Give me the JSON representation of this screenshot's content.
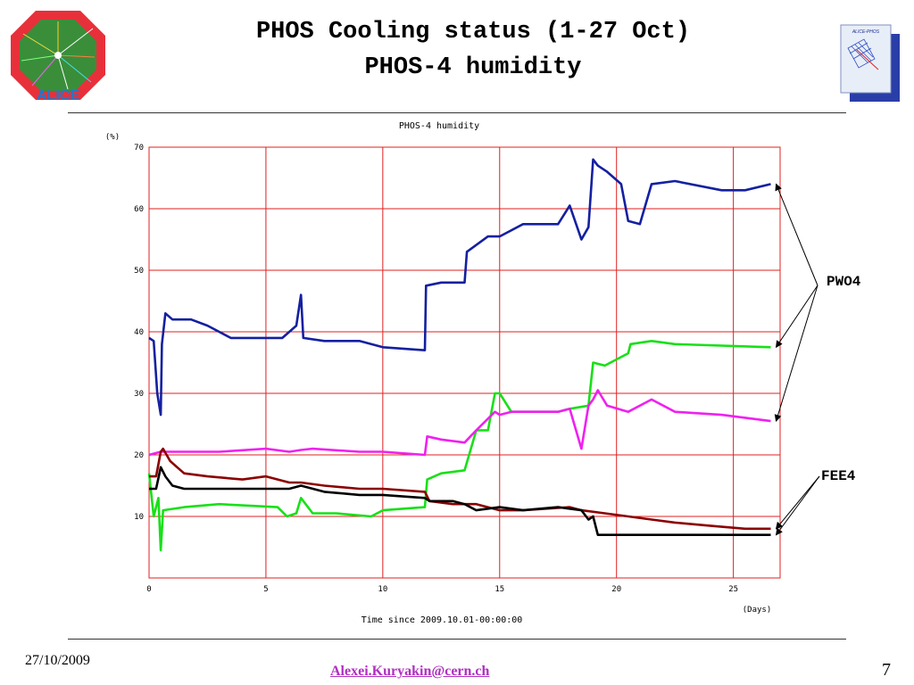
{
  "slide": {
    "title_line1": "PHOS Cooling status (1-27 Oct)",
    "title_line2": "PHOS-4 humidity",
    "date": "27/10/2009",
    "email": "Alexei.Kuryakin@cern.ch",
    "page_number": "7",
    "logo_left_text": "ALICE",
    "logo_right_text": "ALICE-PHOS"
  },
  "annotations": {
    "pwo4": "PWO4",
    "fee4": "FEE4"
  },
  "colors": {
    "grid": "#e02020",
    "blue": "#1420a0",
    "green": "#18e018",
    "magenta": "#f020f0",
    "darkred": "#8b0000",
    "black": "#000000"
  },
  "chart_data": {
    "type": "line",
    "title": "PHOS-4 humidity",
    "xlabel": "Time since 2009.10.01-00:00:00",
    "xunit": "(Days)",
    "ylabel": "(%)",
    "xlim": [
      0,
      27
    ],
    "ylim": [
      0,
      70
    ],
    "xticks": [
      0,
      5,
      10,
      15,
      20,
      25
    ],
    "yticks": [
      10,
      20,
      30,
      40,
      50,
      60,
      70
    ],
    "grid": true,
    "series": [
      {
        "color_key": "blue",
        "x": [
          0,
          0.2,
          0.35,
          0.5,
          0.55,
          0.7,
          1.0,
          1.8,
          2.5,
          3.5,
          4.5,
          5.7,
          6.3,
          6.5,
          6.6,
          7.5,
          9.0,
          10.0,
          11.8,
          11.85,
          12.5,
          13.5,
          13.6,
          14.5,
          15.0,
          16.0,
          17.5,
          18.0,
          18.5,
          18.8,
          19.0,
          19.2,
          19.6,
          20.2,
          20.5,
          21.0,
          21.5,
          22.5,
          24.5,
          25.5,
          26.6
        ],
        "y": [
          39,
          38.5,
          30,
          26.5,
          38,
          43,
          42,
          42,
          41,
          39,
          39,
          39,
          41,
          46,
          39,
          38.5,
          38.5,
          37.5,
          37,
          47.5,
          48,
          48,
          53,
          55.5,
          55.5,
          57.5,
          57.5,
          60.5,
          55,
          57,
          68,
          67,
          66,
          64,
          58,
          57.5,
          64,
          64.5,
          63,
          63,
          64
        ]
      },
      {
        "color_key": "green",
        "x": [
          0,
          0.2,
          0.4,
          0.5,
          0.6,
          1.5,
          3.0,
          5.5,
          5.9,
          6.3,
          6.5,
          7.0,
          8.0,
          9.5,
          10.0,
          11.8,
          11.9,
          12.5,
          13.5,
          14.0,
          14.5,
          14.8,
          15.0,
          15.5,
          17.5,
          18.0,
          18.8,
          19.0,
          19.5,
          20.5,
          20.6,
          21.5,
          22.5,
          26.6
        ],
        "y": [
          17,
          10,
          13,
          4.5,
          11,
          11.5,
          12,
          11.5,
          10,
          10.5,
          13,
          10.5,
          10.5,
          10,
          11,
          11.5,
          16,
          17,
          17.5,
          24,
          24,
          30,
          30,
          27,
          27,
          27.5,
          28,
          35,
          34.5,
          36.5,
          38,
          38.5,
          38,
          37.5
        ]
      },
      {
        "color_key": "magenta",
        "x": [
          0,
          0.5,
          1.0,
          3.0,
          5.0,
          6.0,
          6.5,
          7.0,
          9.0,
          10.0,
          11.8,
          11.9,
          12.5,
          13.5,
          14.0,
          14.8,
          15.0,
          15.5,
          17.5,
          18.0,
          18.5,
          18.8,
          19.0,
          19.2,
          19.6,
          20.5,
          21.5,
          22.5,
          24.5,
          26.6
        ],
        "y": [
          20,
          20.5,
          20.5,
          20.5,
          21,
          20.5,
          20.8,
          21,
          20.5,
          20.5,
          20,
          23,
          22.5,
          22,
          24,
          27,
          26.5,
          27,
          27,
          27.5,
          21,
          28,
          29,
          30.5,
          28,
          27,
          29,
          27,
          26.5,
          25.5
        ]
      },
      {
        "color_key": "darkred",
        "x": [
          0,
          0.3,
          0.5,
          0.6,
          0.9,
          1.2,
          1.5,
          2.5,
          4.0,
          5.0,
          6.0,
          6.5,
          7.5,
          9.0,
          10.0,
          11.8,
          12.0,
          13.0,
          14.0,
          15.0,
          16.0,
          18.0,
          18.5,
          19.5,
          20.5,
          21.5,
          22.5,
          24.0,
          25.5,
          26.6
        ],
        "y": [
          16.5,
          16.5,
          20.5,
          21,
          19,
          18,
          17,
          16.5,
          16,
          16.5,
          15.5,
          15.5,
          15,
          14.5,
          14.5,
          14,
          12.5,
          12,
          12,
          11,
          11,
          11.5,
          11,
          10.5,
          10,
          9.5,
          9,
          8.5,
          8,
          8
        ]
      },
      {
        "color_key": "black",
        "x": [
          0,
          0.3,
          0.5,
          0.7,
          1.0,
          1.5,
          2.0,
          3.0,
          4.5,
          6.0,
          6.5,
          7.5,
          9.0,
          10.0,
          11.8,
          12.0,
          13.0,
          13.5,
          14.0,
          15.0,
          16.0,
          17.5,
          18.5,
          18.8,
          19.0,
          19.2,
          20.0,
          22.0,
          24.0,
          26.6
        ],
        "y": [
          14.5,
          14.5,
          18,
          16.5,
          15,
          14.5,
          14.5,
          14.5,
          14.5,
          14.5,
          15,
          14,
          13.5,
          13.5,
          13,
          12.5,
          12.5,
          12,
          11,
          11.5,
          11,
          11.5,
          11,
          9.5,
          10,
          7,
          7,
          7,
          7,
          7
        ]
      }
    ]
  }
}
